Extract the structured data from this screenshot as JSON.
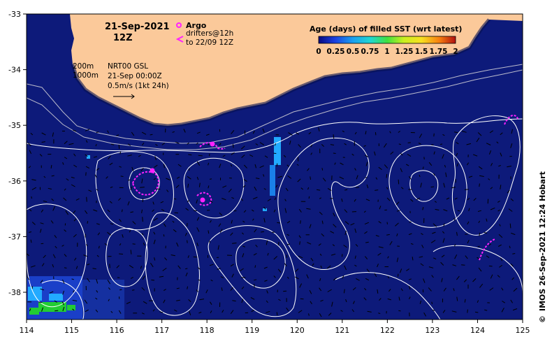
{
  "map": {
    "date": "21-Sep-2021",
    "time": "12Z",
    "argo_label": "Argo",
    "drifters_line1": "drifters@12h",
    "drifters_line2": "to 22/09 12Z",
    "isobath_200": "200m",
    "isobath_1000": "1000m",
    "product_line1": "NRT00 GSL",
    "product_line2": "21-Sep 00:00Z",
    "product_line3": "0.5m/s (1kt 24h)",
    "credit": "IMOS 26-Sep-2021 12:24 Hobart",
    "copyright_symbol": "©"
  },
  "colorbar": {
    "title": "Age (days) of filled SST (wrt latest)",
    "ticks": [
      "0",
      "0.25",
      "0.5",
      "0.75",
      "1",
      "1.25",
      "1.5",
      "1.75",
      "2"
    ]
  },
  "axes": {
    "lon_ticks": [
      "114",
      "115",
      "116",
      "117",
      "118",
      "119",
      "120",
      "121",
      "122",
      "123",
      "124",
      "125"
    ],
    "lat_ticks": [
      "-33",
      "-34",
      "-35",
      "-36",
      "-37",
      "-38"
    ]
  },
  "colors": {
    "ocean": "#0d1a7a",
    "land": "#fbc99a",
    "contour": "#ffffff",
    "drifter": "#ff22ff",
    "gap_fill_cyan": "#22aaff",
    "gap_fill_green": "#22cc33"
  }
}
